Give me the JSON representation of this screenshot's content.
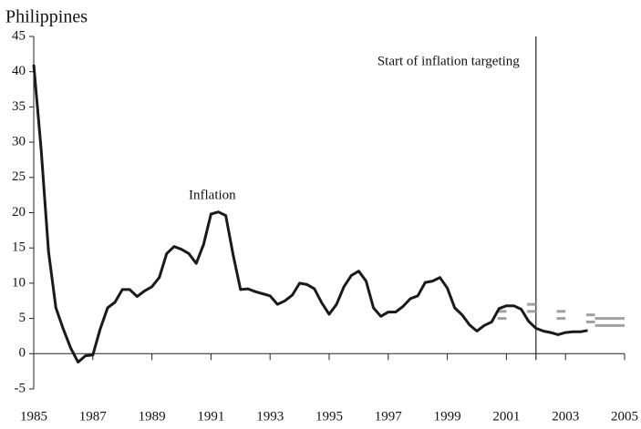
{
  "chart_data": {
    "type": "line",
    "title": "Philippines",
    "annotations": {
      "series_label": "Inflation",
      "event": "Start of inflation targeting"
    },
    "event_x": 2002,
    "x": [
      1985,
      1985.25,
      1985.5,
      1985.75,
      1986,
      1986.25,
      1986.5,
      1986.75,
      1987,
      1987.25,
      1987.5,
      1987.75,
      1988,
      1988.25,
      1988.5,
      1988.75,
      1989,
      1989.25,
      1989.5,
      1989.75,
      1990,
      1990.25,
      1990.5,
      1990.75,
      1991,
      1991.25,
      1991.5,
      1991.75,
      1992,
      1992.25,
      1992.5,
      1992.75,
      1993,
      1993.25,
      1993.5,
      1993.75,
      1994,
      1994.25,
      1994.5,
      1994.75,
      1995,
      1995.25,
      1995.5,
      1995.75,
      1996,
      1996.25,
      1996.5,
      1996.75,
      1997,
      1997.25,
      1997.5,
      1997.75,
      1998,
      1998.25,
      1998.5,
      1998.75,
      1999,
      1999.25,
      1999.5,
      1999.75,
      2000,
      2000.25,
      2000.5,
      2000.75,
      2001,
      2001.25,
      2001.5,
      2001.75,
      2002,
      2002.25,
      2002.5,
      2002.75,
      2003,
      2003.25,
      2003.5,
      2003.75
    ],
    "series": [
      {
        "name": "Inflation",
        "color": "#1a1a1a",
        "values": [
          41,
          29,
          14.5,
          6.5,
          3.5,
          0.8,
          -1.2,
          -0.3,
          -0.2,
          3.5,
          6.5,
          7.3,
          9.1,
          9.1,
          8.1,
          8.9,
          9.5,
          10.8,
          14.2,
          15.2,
          14.8,
          14.2,
          12.8,
          15.5,
          19.8,
          20.1,
          19.6,
          14,
          9.1,
          9.2,
          8.8,
          8.5,
          8.2,
          7,
          7.5,
          8.3,
          10,
          9.8,
          9.2,
          7.2,
          5.6,
          7,
          9.5,
          11.1,
          11.7,
          10.3,
          6.5,
          5.3,
          5.9,
          5.9,
          6.7,
          7.8,
          8.2,
          10.1,
          10.3,
          10.8,
          9.3,
          6.5,
          5.5,
          4.1,
          3.2,
          4,
          4.5,
          6.4,
          6.8,
          6.8,
          6.3,
          4.6,
          3.6,
          3.2,
          3,
          2.7,
          3,
          3.1,
          3.1,
          3.3
        ]
      }
    ],
    "target_color": "#a0a0a0",
    "target_bands": [
      {
        "x": [
          2000.7,
          2001.0
        ],
        "values": [
          5,
          6
        ]
      },
      {
        "x": [
          2001.7,
          2002.0
        ],
        "values": [
          6,
          7
        ]
      },
      {
        "x": [
          2002.7,
          2003.0
        ],
        "values": [
          5,
          6
        ]
      },
      {
        "x": [
          2003.7,
          2004.0
        ],
        "values": [
          4.5,
          5.5
        ]
      },
      {
        "x": [
          2004.0,
          2005.0
        ],
        "values": [
          4,
          5
        ]
      }
    ],
    "xlim": [
      1985,
      2005
    ],
    "xticks": [
      1985,
      1987,
      1989,
      1991,
      1993,
      1995,
      1997,
      1999,
      2001,
      2003,
      2005
    ],
    "ylim": [
      -5,
      45
    ],
    "yticks": [
      -5,
      0,
      5,
      10,
      15,
      20,
      25,
      30,
      35,
      40,
      45
    ]
  }
}
